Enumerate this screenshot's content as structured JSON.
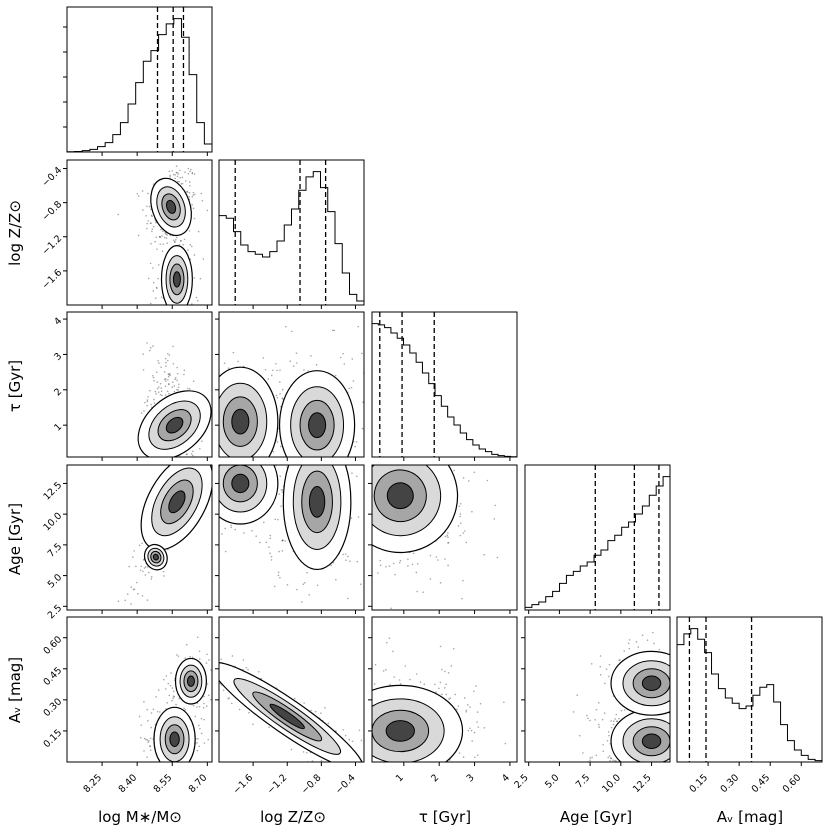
{
  "chart_data": {
    "type": "corner",
    "parameters": [
      {
        "key": "logM",
        "label": "log M∗/M⊙",
        "range": [
          8.1,
          8.72
        ],
        "ticks": [
          8.25,
          8.4,
          8.55,
          8.7
        ],
        "tick_labels": [
          "8.25",
          "8.40",
          "8.55",
          "8.70"
        ],
        "quantiles": [
          8.487,
          8.554,
          8.598
        ]
      },
      {
        "key": "logZ",
        "label": "log Z/Z⊙",
        "range": [
          -2.0,
          -0.3
        ],
        "ticks": [
          -1.6,
          -1.2,
          -0.8,
          -0.4
        ],
        "tick_labels": [
          "−1.6",
          "−1.2",
          "−0.8",
          "−0.4"
        ],
        "quantiles": [
          -1.81,
          -1.05,
          -0.75
        ]
      },
      {
        "key": "tau",
        "label": "τ [Gyr]",
        "range": [
          0.1,
          4.2
        ],
        "ticks": [
          1,
          2,
          3,
          4
        ],
        "tick_labels": [
          "1",
          "2",
          "3",
          "4"
        ],
        "quantiles": [
          0.32,
          0.95,
          1.86
        ]
      },
      {
        "key": "age",
        "label": "Age [Gyr]",
        "range": [
          2.2,
          14.0
        ],
        "ticks": [
          2.5,
          5.0,
          7.5,
          10.0,
          12.5
        ],
        "tick_labels": [
          "2.5",
          "5.0",
          "7.5",
          "10.0",
          "12.5"
        ],
        "quantiles": [
          7.92,
          11.1,
          13.1
        ]
      },
      {
        "key": "av",
        "label": "Aᵥ [mag]",
        "range": [
          0.0,
          0.7
        ],
        "ticks": [
          0.15,
          0.3,
          0.45,
          0.6
        ],
        "tick_labels": [
          "0.15",
          "0.30",
          "0.45",
          "0.60"
        ],
        "quantiles": [
          0.06,
          0.14,
          0.36
        ]
      }
    ],
    "histograms": {
      "logM": [
        0.2,
        0.4,
        1,
        2,
        4,
        7,
        13,
        22,
        36,
        52,
        68,
        76,
        88,
        96,
        100,
        86,
        58,
        22,
        6
      ],
      "logZ": [
        67,
        65,
        55,
        45,
        40,
        38,
        36,
        40,
        48,
        60,
        72,
        86,
        96,
        100,
        88,
        70,
        46,
        24,
        8,
        3
      ],
      "tau": [
        100,
        99,
        97,
        93,
        89,
        84,
        78,
        71,
        63,
        55,
        46,
        38,
        30,
        24,
        18,
        13,
        9,
        6,
        4,
        2,
        1,
        0.5,
        0.2
      ],
      "age": [
        2,
        4,
        6,
        10,
        14,
        20,
        26,
        29,
        33,
        36,
        41,
        45,
        52,
        56,
        62,
        66,
        72,
        78,
        86,
        93,
        100
      ],
      "av": [
        88,
        96,
        100,
        92,
        82,
        66,
        55,
        48,
        44,
        40,
        42,
        50,
        56,
        58,
        45,
        28,
        16,
        9,
        5,
        2,
        1
      ]
    },
    "pairs": [
      {
        "x": "logM",
        "y": "logZ",
        "components": [
          {
            "mx": 8.545,
            "my": -0.85,
            "sx": 0.035,
            "sy": 0.16,
            "rho": 0.2,
            "w": 0.7
          },
          {
            "mx": 8.57,
            "my": -1.7,
            "sx": 0.03,
            "sy": 0.18,
            "rho": 0.0,
            "w": 0.3
          }
        ]
      },
      {
        "x": "logM",
        "y": "tau",
        "components": [
          {
            "mx": 8.56,
            "my": 1.0,
            "sx": 0.035,
            "sy": 0.6,
            "rho": -0.45,
            "w": 1.0
          }
        ]
      },
      {
        "x": "logM",
        "y": "age",
        "components": [
          {
            "mx": 8.57,
            "my": 11.0,
            "sx": 0.05,
            "sy": 2.0,
            "rho": 0.85,
            "w": 0.9
          },
          {
            "mx": 8.48,
            "my": 6.5,
            "sx": 0.02,
            "sy": 0.5,
            "rho": 0.3,
            "w": 0.1
          }
        ]
      },
      {
        "x": "logM",
        "y": "av",
        "components": [
          {
            "mx": 8.56,
            "my": 0.11,
            "sx": 0.04,
            "sy": 0.07,
            "rho": 0.0,
            "w": 0.7
          },
          {
            "mx": 8.63,
            "my": 0.39,
            "sx": 0.03,
            "sy": 0.05,
            "rho": 0.0,
            "w": 0.3
          }
        ]
      },
      {
        "x": "logZ",
        "y": "tau",
        "components": [
          {
            "mx": -0.85,
            "my": 1.0,
            "sx": 0.2,
            "sy": 0.7,
            "rho": 0.0,
            "w": 0.6
          },
          {
            "mx": -1.75,
            "my": 1.1,
            "sx": 0.2,
            "sy": 0.7,
            "rho": 0.0,
            "w": 0.4
          }
        ]
      },
      {
        "x": "logZ",
        "y": "age",
        "components": [
          {
            "mx": -0.85,
            "my": 11.0,
            "sx": 0.18,
            "sy": 2.5,
            "rho": 0.0,
            "w": 0.55
          },
          {
            "mx": -1.75,
            "my": 12.5,
            "sx": 0.2,
            "sy": 1.5,
            "rho": 0.0,
            "w": 0.45
          }
        ]
      },
      {
        "x": "logZ",
        "y": "av",
        "components": [
          {
            "mx": -1.2,
            "my": 0.22,
            "sx": 0.4,
            "sy": 0.12,
            "rho": -0.95,
            "w": 1.0
          }
        ]
      },
      {
        "x": "tau",
        "y": "age",
        "components": [
          {
            "mx": 0.9,
            "my": 11.5,
            "sx": 0.7,
            "sy": 2.2,
            "rho": -0.3,
            "w": 1.0
          }
        ]
      },
      {
        "x": "tau",
        "y": "av",
        "components": [
          {
            "mx": 0.9,
            "my": 0.15,
            "sx": 0.8,
            "sy": 0.1,
            "rho": 0.0,
            "w": 1.0
          }
        ]
      },
      {
        "x": "age",
        "y": "av",
        "components": [
          {
            "mx": 12.5,
            "my": 0.1,
            "sx": 1.5,
            "sy": 0.07,
            "rho": 0.0,
            "w": 0.7
          },
          {
            "mx": 12.5,
            "my": 0.38,
            "sx": 1.5,
            "sy": 0.07,
            "rho": 0.0,
            "w": 0.3
          }
        ]
      }
    ]
  }
}
